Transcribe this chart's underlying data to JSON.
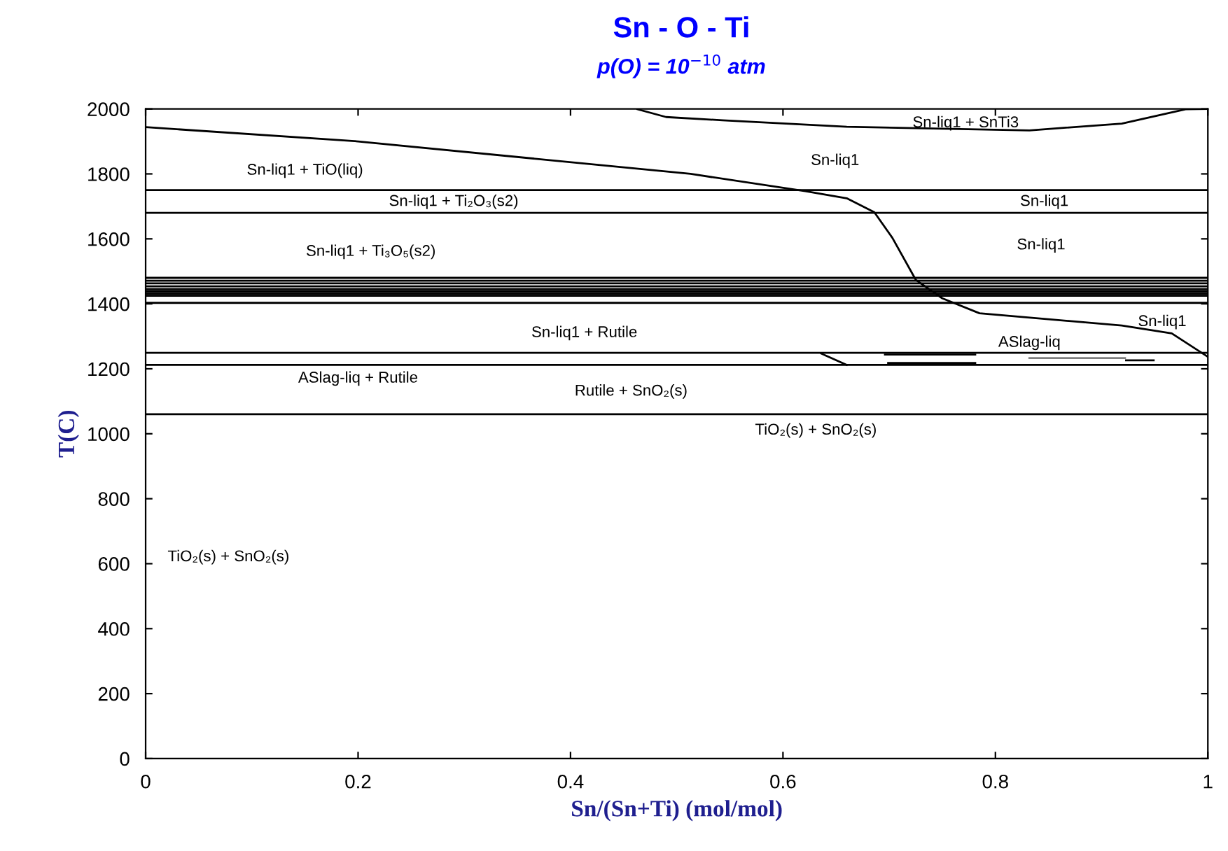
{
  "chart_data": {
    "type": "line",
    "title": "Sn - O - Ti",
    "subtitle": "p(O) = 10$^{−10}$ atm",
    "xlabel": "Sn/(Sn+Ti) (mol/mol)",
    "ylabel": "T(C)",
    "xlim": [
      0,
      1
    ],
    "xticks": [
      0,
      0.2,
      0.4,
      0.6,
      0.8,
      1
    ],
    "ylim": [
      0,
      2000
    ],
    "yticks": [
      0,
      200,
      400,
      600,
      800,
      1000,
      1200,
      1400,
      1600,
      1800,
      2000
    ],
    "grid": false,
    "marker": "none",
    "line_style": "solid",
    "series": [
      {
        "color": "#000000",
        "x": [
          0,
          0.2,
          0.513,
          0.621,
          0.66,
          0.686,
          0.703,
          0.725,
          0.75,
          0.785,
          0.919,
          0.966,
          1.0
        ],
        "values": [
          1944,
          1900,
          1800,
          1747,
          1725,
          1682,
          1603,
          1474,
          1417,
          1371,
          1333,
          1309,
          1237
        ]
      },
      {
        "color": "#000000",
        "x": [
          0.463,
          0.49,
          0.543,
          0.66,
          0.832,
          0.919,
          0.979,
          1.0
        ],
        "values": [
          1999,
          1975,
          1965,
          1945,
          1934,
          1955,
          1999,
          2000
        ]
      },
      {
        "color": "#000000",
        "x": [
          0.636,
          0.66
        ],
        "values": [
          1247,
          1212
        ]
      },
      {
        "color": "#000000",
        "x": [
          0.696,
          0.781
        ],
        "values": [
          1244,
          1244
        ]
      },
      {
        "color": "#000000",
        "x": [
          0.699,
          0.781
        ],
        "values": [
          1218,
          1218
        ]
      },
      {
        "color": "#808080",
        "x": [
          0.832,
          0.922
        ],
        "values": [
          1233,
          1233
        ]
      },
      {
        "color": "#000000",
        "x": [
          0.923,
          0.949
        ],
        "values": [
          1226,
          1226
        ]
      }
    ],
    "ref_lines": [
      {
        "axis": "y",
        "value": 1750,
        "color": "#000000"
      },
      {
        "axis": "y",
        "value": 1680,
        "color": "#000000"
      },
      {
        "axis": "y",
        "value": 1480,
        "color": "#000000"
      },
      {
        "axis": "y",
        "value": 1471,
        "color": "#000000"
      },
      {
        "axis": "y",
        "value": 1463,
        "color": "#000000"
      },
      {
        "axis": "y",
        "value": 1454,
        "color": "#000000"
      },
      {
        "axis": "y",
        "value": 1445,
        "color": "#000000"
      },
      {
        "axis": "y",
        "value": 1438,
        "color": "#000000"
      },
      {
        "axis": "y",
        "value": 1431,
        "color": "#000000"
      },
      {
        "axis": "y",
        "value": 1425,
        "color": "#000000"
      },
      {
        "axis": "y",
        "value": 1403,
        "color": "#000000"
      },
      {
        "axis": "y",
        "value": 1249,
        "color": "#000000"
      },
      {
        "axis": "y",
        "value": 1212,
        "color": "#000000"
      },
      {
        "axis": "y",
        "value": 1060,
        "color": "#000000"
      }
    ],
    "annotations": [
      "Sn-liq1 + SnTi3",
      "Sn-liq1",
      "Sn-liq1 + TiO(liq)",
      "Sn-liq1 + Ti₂O₃(s2)",
      "Sn-liq1",
      "Sn-liq1 + Ti₃O₅(s2)",
      "Sn-liq1",
      "Sn-liq1",
      "Sn-liq1 + Rutile",
      "ASlag-liq + Rutile",
      "ASlag-liq",
      "Rutile + SnO₂(s)",
      "TiO₂(s) + SnO₂(s)",
      "TiO₂(s) + SnO₂(s)"
    ]
  }
}
